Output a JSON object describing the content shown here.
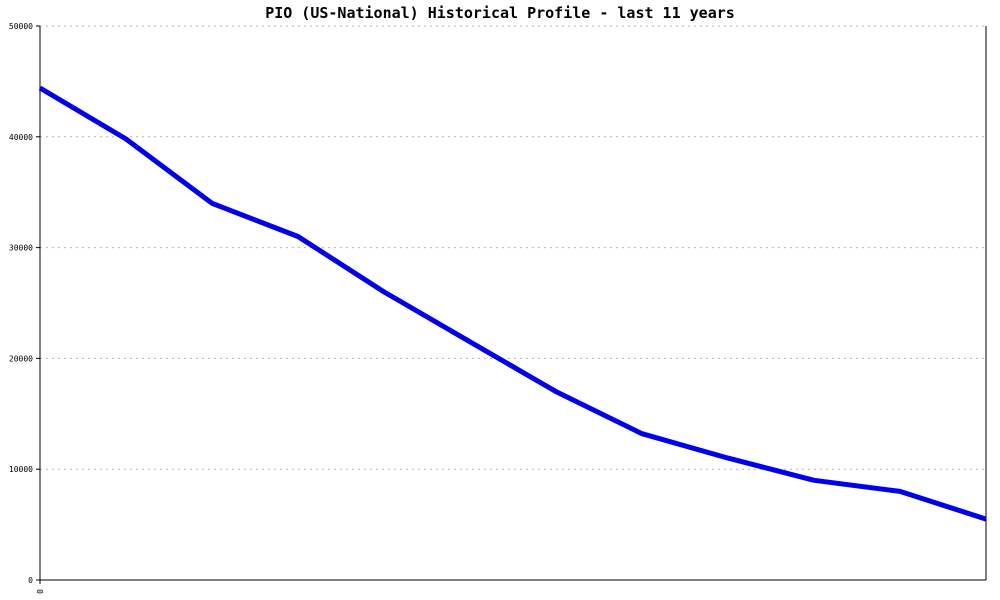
{
  "chart_data": {
    "type": "line",
    "title": "PIO (US-National) Historical Profile - last 11 years",
    "xlabel": "",
    "ylabel": "",
    "x_tick_labels": [
      "0"
    ],
    "y_ticks": [
      0,
      10000,
      20000,
      30000,
      40000,
      50000
    ],
    "ylim": [
      0,
      50000
    ],
    "grid": true,
    "series": [
      {
        "color": "#0000ee",
        "values": [
          44400,
          39800,
          34000,
          31000,
          26000,
          21500,
          17000,
          13200,
          11000,
          9000,
          8000,
          5500
        ]
      }
    ]
  }
}
